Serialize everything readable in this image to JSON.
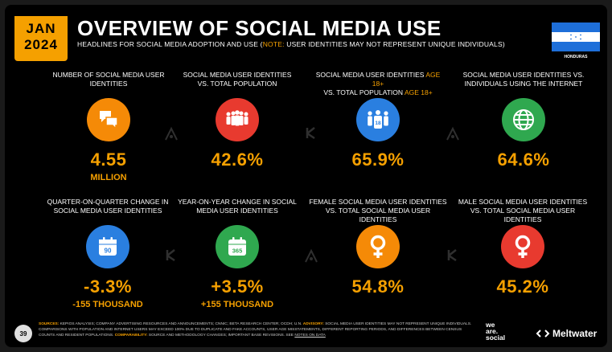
{
  "header": {
    "month": "JAN",
    "year": "2024",
    "title": "OVERVIEW OF SOCIAL MEDIA USE",
    "subtitle_main": "HEADLINES FOR SOCIAL MEDIA ADOPTION AND USE (",
    "subtitle_note": "NOTE:",
    "subtitle_rest": " USER IDENTITIES MAY NOT REPRESENT UNIQUE INDIVIDUALS)",
    "country": "HONDURAS"
  },
  "stats": [
    {
      "label": "NUMBER OF SOCIAL MEDIA USER IDENTITIES",
      "value": "4.55",
      "unit": "MILLION",
      "icon": "chat-bubbles-icon",
      "color": "#f58a07"
    },
    {
      "label": "SOCIAL MEDIA USER IDENTITIES vs. TOTAL POPULATION",
      "value": "42.6%",
      "icon": "crowd-icon",
      "color": "#e83a2f"
    },
    {
      "label_a": "SOCIAL MEDIA USER IDENTITIES ",
      "label_hl": "AGE 18+",
      "label_b": "vs. TOTAL POPULATION ",
      "label_hl2": "AGE 18+",
      "value": "65.9%",
      "icon": "adults-18-icon",
      "icon_text": "18",
      "color": "#2a7fe0"
    },
    {
      "label": "SOCIAL MEDIA USER IDENTITIES vs. INDIVIDUALS USING THE INTERNET",
      "value": "64.6%",
      "icon": "globe-icon",
      "color": "#2fa84f"
    },
    {
      "label": "QUARTER-ON-QUARTER CHANGE IN SOCIAL MEDIA USER IDENTITIES",
      "value": "-3.3%",
      "unit": "-155 THOUSAND",
      "icon": "calendar-90-icon",
      "icon_text": "90",
      "color": "#2a7fe0"
    },
    {
      "label": "YEAR-ON-YEAR CHANGE IN SOCIAL MEDIA USER IDENTITIES",
      "value": "+3.5%",
      "unit": "+155 THOUSAND",
      "icon": "calendar-365-icon",
      "icon_text": "365",
      "color": "#2fa84f"
    },
    {
      "label": "FEMALE SOCIAL MEDIA USER IDENTITIES vs. TOTAL SOCIAL MEDIA USER IDENTITIES",
      "value": "54.8%",
      "icon": "female-symbol-icon",
      "color": "#f58a07"
    },
    {
      "label": "MALE SOCIAL MEDIA USER IDENTITIES vs. TOTAL SOCIAL MEDIA USER IDENTITIES",
      "value": "45.2%",
      "icon": "female-symbol-icon",
      "color": "#e83a2f"
    }
  ],
  "footer": {
    "page": "39",
    "sources_key": "SOURCES:",
    "sources_text": " KEPIOS ANALYSIS; COMPANY ADVERTISING RESOURCES AND ANNOUNCEMENTS; CNNIC; BETA RESEARCH CENTER; OCDH; U.N. ",
    "advisory_key": "ADVISORY:",
    "advisory_text": " SOCIAL MEDIA USER IDENTITIES MAY NOT REPRESENT UNIQUE INDIVIDUALS. COMPARISONS WITH POPULATION AND INTERNET USERS MAY EXCEED 100% DUE TO DUPLICATE AND FAKE ACCOUNTS, USER AGE MISSTATEMENTS, DIFFERENT REPORTING PERIODS, AND DIFFERENCES BETWEEN CENSUS COUNTS AND RESIDENT POPULATIONS. ",
    "comparability_key": "COMPARABILITY:",
    "comparability_text": " SOURCE AND METHODOLOGY CHANGES; IMPORTANT BASE REVISIONS. SEE ",
    "notes_link": "NOTES ON DATA",
    "brand1_line1": "we",
    "brand1_line2": "are.",
    "brand1_line3": "social",
    "brand2": "Meltwater"
  }
}
